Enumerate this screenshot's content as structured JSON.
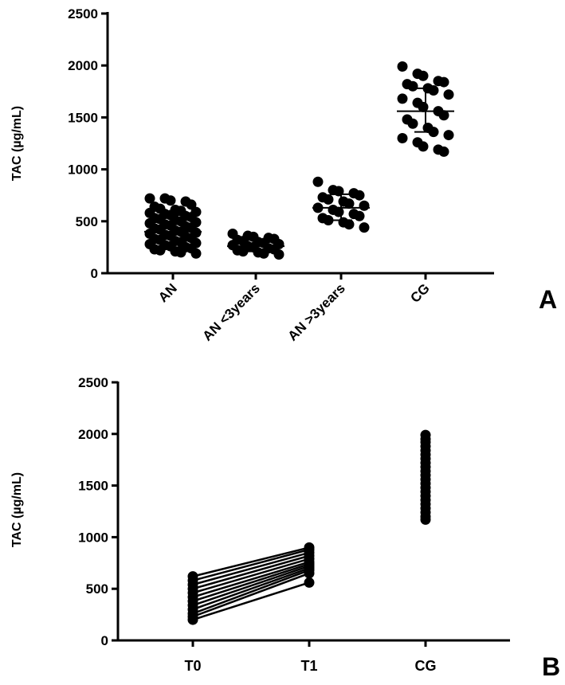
{
  "chart_data": [
    {
      "panel": "A",
      "type": "scatter",
      "title": "",
      "ylabel": "TAC (µg/mL)",
      "xlabel": "",
      "ylim": [
        0,
        2500
      ],
      "yticks": [
        0,
        500,
        1000,
        1500,
        2000,
        2500
      ],
      "grid": false,
      "categories": [
        "AN",
        "AN <3years",
        "AN >3years",
        "CG"
      ],
      "series": [
        {
          "category": "AN",
          "mean": 400,
          "sd_low": 250,
          "sd_high": 560,
          "values": [
            720,
            720,
            700,
            690,
            660,
            640,
            620,
            610,
            600,
            590,
            580,
            570,
            560,
            550,
            540,
            530,
            520,
            510,
            500,
            490,
            480,
            470,
            460,
            450,
            440,
            430,
            420,
            410,
            400,
            390,
            380,
            370,
            360,
            350,
            340,
            330,
            320,
            310,
            300,
            290,
            280,
            270,
            260,
            250,
            240,
            230,
            220,
            210,
            200,
            190
          ]
        },
        {
          "category": "AN <3years",
          "mean": 260,
          "sd_low": 210,
          "sd_high": 320,
          "values": [
            380,
            360,
            350,
            340,
            330,
            320,
            310,
            300,
            290,
            280,
            270,
            260,
            250,
            240,
            230,
            220,
            210,
            200,
            190,
            180
          ]
        },
        {
          "category": "AN >3years",
          "mean": 630,
          "sd_low": 510,
          "sd_high": 760,
          "values": [
            880,
            800,
            790,
            770,
            750,
            730,
            710,
            690,
            670,
            650,
            630,
            610,
            590,
            570,
            550,
            530,
            510,
            490,
            470,
            440
          ]
        },
        {
          "category": "CG",
          "mean": 1560,
          "sd_low": 1360,
          "sd_high": 1780,
          "values": [
            1990,
            1920,
            1900,
            1850,
            1840,
            1820,
            1800,
            1780,
            1760,
            1720,
            1680,
            1640,
            1600,
            1560,
            1520,
            1480,
            1440,
            1400,
            1360,
            1330,
            1300,
            1260,
            1220,
            1190,
            1170
          ]
        }
      ]
    },
    {
      "panel": "B",
      "type": "line",
      "title": "",
      "ylabel": "TAC (µg/mL)",
      "xlabel": "",
      "ylim": [
        0,
        2500
      ],
      "yticks": [
        0,
        500,
        1000,
        1500,
        2000,
        2500
      ],
      "grid": false,
      "categories": [
        "T0",
        "T1",
        "CG"
      ],
      "paired_series": [
        {
          "T0": 620,
          "T1": 900
        },
        {
          "T0": 580,
          "T1": 880
        },
        {
          "T0": 540,
          "T1": 850
        },
        {
          "T0": 500,
          "T1": 820
        },
        {
          "T0": 460,
          "T1": 790
        },
        {
          "T0": 420,
          "T1": 760
        },
        {
          "T0": 380,
          "T1": 740
        },
        {
          "T0": 340,
          "T1": 720
        },
        {
          "T0": 300,
          "T1": 700
        },
        {
          "T0": 260,
          "T1": 680
        },
        {
          "T0": 230,
          "T1": 650
        },
        {
          "T0": 200,
          "T1": 560
        }
      ],
      "cg_values": [
        1990,
        1950,
        1920,
        1880,
        1840,
        1800,
        1760,
        1720,
        1680,
        1640,
        1600,
        1560,
        1520,
        1480,
        1440,
        1400,
        1360,
        1320,
        1280,
        1240,
        1200,
        1170
      ]
    }
  ],
  "panel_labels": [
    "A",
    "B"
  ]
}
